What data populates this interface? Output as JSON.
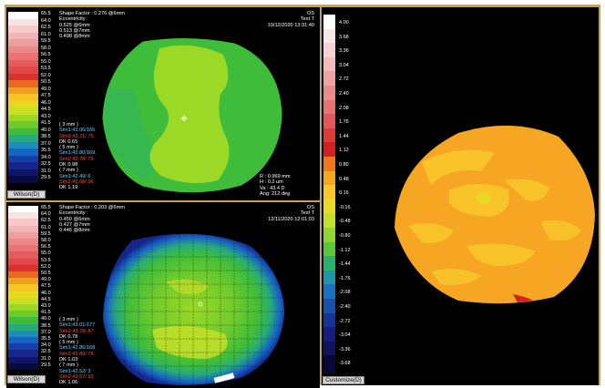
{
  "top_panel": {
    "scale_values": [
      "65.5",
      "64.0",
      "62.5",
      "61.0",
      "59.5",
      "58.0",
      "56.5",
      "55.0",
      "53.5",
      "52.0",
      "50.5",
      "49.0",
      "47.5",
      "46.0",
      "44.5",
      "43.0",
      "41.5",
      "40.0",
      "38.5",
      "37.0",
      "35.5",
      "34.0",
      "32.5",
      "31.0",
      "29.5"
    ],
    "scale_label": "Wilson(D)",
    "header": [
      "Shape Factor : 0.276 @6mm",
      "Eccentricity :",
      "0.525 @6mm",
      "0.513 @7mm",
      "0.498 @8mm"
    ],
    "eye": "OS",
    "patient": "Test T",
    "datetime": "10/12/2020 13:31:40",
    "sim_lines": [
      {
        "text": "( 3 mm )",
        "color": "white"
      },
      {
        "text": "Sim1:43.06/165",
        "color": "cyan"
      },
      {
        "text": "Sim2:43.71/ 75",
        "color": "red"
      },
      {
        "text": "DK 0.65",
        "color": "white"
      },
      {
        "text": "( 5 mm )",
        "color": "white"
      },
      {
        "text": "Sim1:42.80/169",
        "color": "cyan"
      },
      {
        "text": "Sim2:43.78/ 79",
        "color": "red"
      },
      {
        "text": "DK 0.98",
        "color": "white"
      },
      {
        "text": "( 7 mm )",
        "color": "white"
      },
      {
        "text": "Sim1:42.49/ 6",
        "color": "cyan"
      },
      {
        "text": "Sim2:43.68/ 96",
        "color": "red"
      },
      {
        "text": "DK 1.19",
        "color": "white"
      }
    ],
    "cursor": [
      "R    : 0.969 mm",
      "H    : 0.2 um",
      "Va   : 43.4 D",
      "Ang: 212 deg"
    ]
  },
  "bottom_panel": {
    "scale_values": [
      "65.5",
      "64.0",
      "62.5",
      "61.0",
      "59.5",
      "58.0",
      "56.5",
      "55.0",
      "53.5",
      "52.0",
      "50.5",
      "49.0",
      "47.5",
      "46.0",
      "44.5",
      "43.0",
      "41.5",
      "40.0",
      "38.5",
      "37.0",
      "35.5",
      "34.0",
      "32.5",
      "31.0",
      "29.5"
    ],
    "scale_label": "Wilson(D)",
    "header": [
      "Shape Factor : 0.203 @6mm",
      "Eccentricity :",
      "0.450 @6mm",
      "0.427 @7mm",
      "0.446 @8mm"
    ],
    "eye": "OS",
    "patient": "Test T",
    "datetime": "12/11/2020 12:01:03",
    "sim_lines": [
      {
        "text": "( 3 mm )",
        "color": "white"
      },
      {
        "text": "Sim1:43.01/177",
        "color": "cyan"
      },
      {
        "text": "Sim2:43.78/ 87",
        "color": "red"
      },
      {
        "text": "DK 0.78",
        "color": "white"
      },
      {
        "text": "( 5 mm )",
        "color": "white"
      },
      {
        "text": "Sim1:42.86/168",
        "color": "cyan"
      },
      {
        "text": "Sim2:43.89/ 78",
        "color": "red"
      },
      {
        "text": "DK 1.03",
        "color": "white"
      },
      {
        "text": "( 7 mm )",
        "color": "white"
      },
      {
        "text": "Sim1:42.52/ 3",
        "color": "cyan"
      },
      {
        "text": "Sim2:43.57/ 93",
        "color": "red"
      },
      {
        "text": "DK 1.06",
        "color": "white"
      }
    ]
  },
  "right_panel": {
    "scale_values": [
      "4.00",
      "3.68",
      "3.36",
      "3.04",
      "2.72",
      "2.40",
      "2.08",
      "1.76",
      "1.44",
      "1.12",
      "0.80",
      "0.48",
      "0.16",
      "-0.16",
      "-0.48",
      "-0.80",
      "-1.12",
      "-1.44",
      "-1.76",
      "-2.08",
      "-2.40",
      "-2.72",
      "-3.04",
      "-3.36",
      "-3.68"
    ],
    "scale_label": "Customize(D)"
  },
  "colors": {
    "scale_top": [
      "#ffffff",
      "#f9e4e4",
      "#f5caca",
      "#f2b4b4",
      "#ef9e9e",
      "#ec8888",
      "#e97272",
      "#e65c5c",
      "#e24646",
      "#dd2f2f",
      "#e86a20",
      "#f0a020",
      "#f5c622",
      "#e8d820",
      "#c8e020",
      "#9cd826",
      "#6ecb2c",
      "#3fbd3a",
      "#27ab7a",
      "#1c8fb6",
      "#1864c4",
      "#1640a8",
      "#15268c",
      "#0f1668",
      "#080a40"
    ],
    "scale_right": [
      "#ffffff",
      "#fae8e8",
      "#f6d2d2",
      "#f2bcbc",
      "#eea4a4",
      "#ea8c8c",
      "#e67272",
      "#e25858",
      "#de3a3a",
      "#d42020",
      "#f07818",
      "#f4a820",
      "#f8c82a",
      "#e8dc24",
      "#c4e028",
      "#94d42e",
      "#5cc63a",
      "#28b26a",
      "#1e96a8",
      "#1a72c0",
      "#1850b0",
      "#16339a",
      "#141e82",
      "#10125e",
      "#080838"
    ],
    "map_green": "#8cc63f",
    "map_yellow": "#c8d83a",
    "map_orange": "#f6a623"
  }
}
